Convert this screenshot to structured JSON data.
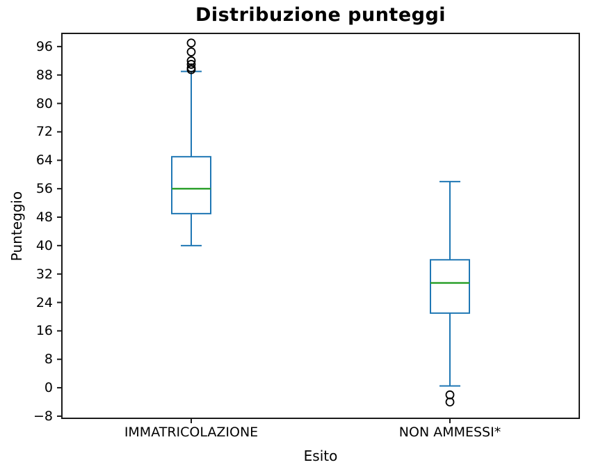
{
  "figure": {
    "title": "Distribuzione punteggi",
    "xlabel": "Esito",
    "ylabel": "Punteggio"
  },
  "chart_data": {
    "type": "boxplot",
    "title": "Distribuzione punteggi",
    "xlabel": "Esito",
    "ylabel": "Punteggio",
    "categories": [
      "IMMATRICOLAZIONE",
      "NON AMMESSI*"
    ],
    "series": [
      {
        "name": "IMMATRICOLAZIONE",
        "whisker_low": 40,
        "q1": 49,
        "median": 56,
        "q3": 65,
        "whisker_high": 89,
        "outliers": [
          89.5,
          90,
          91,
          92,
          94.5,
          97
        ]
      },
      {
        "name": "NON AMMESSI*",
        "whisker_low": 0.5,
        "q1": 21,
        "median": 29.5,
        "q3": 36,
        "whisker_high": 58,
        "outliers": [
          -2,
          -4
        ]
      }
    ],
    "y_ticks": [
      -8,
      0,
      8,
      16,
      24,
      32,
      40,
      48,
      56,
      64,
      72,
      80,
      88,
      96
    ],
    "ylim": [
      -8.6,
      99.7
    ],
    "grid": false,
    "legend": null,
    "colors": {
      "box": "#1f77b4",
      "median": "#2ca02c",
      "flier": "#000000",
      "spine": "#1a1a1a",
      "text": "#000000",
      "background": "#ffffff"
    }
  }
}
